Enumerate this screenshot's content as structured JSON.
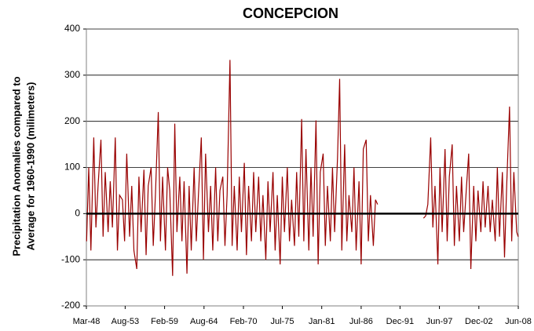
{
  "chart_data": {
    "type": "line",
    "title": "CONCEPCION",
    "y_label": [
      "Precipitation Anomalies compared to",
      "Average for 1960-1990 (milimeters)"
    ],
    "ylim": [
      -200,
      400
    ],
    "yticks": [
      -200,
      -100,
      0,
      100,
      200,
      300,
      400
    ],
    "grid": true,
    "xlim": [
      1948.17,
      2008.42
    ],
    "xticks": [
      {
        "value": 1948.17,
        "label": "Mar-48"
      },
      {
        "value": 1953.58,
        "label": "Aug-53"
      },
      {
        "value": 1959.08,
        "label": "Feb-59"
      },
      {
        "value": 1964.58,
        "label": "Aug-64"
      },
      {
        "value": 1970.08,
        "label": "Feb-70"
      },
      {
        "value": 1975.5,
        "label": "Jul-75"
      },
      {
        "value": 1981.0,
        "label": "Jan-81"
      },
      {
        "value": 1986.5,
        "label": "Jul-86"
      },
      {
        "value": 1991.92,
        "label": "Dec-91"
      },
      {
        "value": 1997.42,
        "label": "Jun-97"
      },
      {
        "value": 2002.92,
        "label": "Dec-02"
      },
      {
        "value": 2008.42,
        "label": "Jun-08"
      }
    ],
    "x": [
      1948.2,
      1948.5,
      1948.8,
      1949.2,
      1949.5,
      1949.8,
      1950.2,
      1950.5,
      1950.8,
      1951.2,
      1951.5,
      1951.8,
      1952.2,
      1952.5,
      1952.8,
      1953.2,
      1953.5,
      1953.8,
      1954.2,
      1954.5,
      1954.8,
      1955.2,
      1955.5,
      1955.8,
      1956.2,
      1956.5,
      1956.8,
      1957.2,
      1957.5,
      1957.8,
      1958.2,
      1958.5,
      1958.8,
      1959.2,
      1959.5,
      1959.8,
      1960.2,
      1960.5,
      1960.8,
      1961.2,
      1961.5,
      1961.8,
      1962.2,
      1962.5,
      1962.8,
      1963.2,
      1963.5,
      1963.8,
      1964.2,
      1964.5,
      1964.8,
      1965.2,
      1965.5,
      1965.8,
      1966.2,
      1966.5,
      1966.8,
      1967.2,
      1967.5,
      1967.8,
      1968.2,
      1968.5,
      1968.8,
      1969.2,
      1969.5,
      1969.8,
      1970.2,
      1970.5,
      1970.8,
      1971.2,
      1971.5,
      1971.8,
      1972.2,
      1972.5,
      1972.8,
      1973.2,
      1973.5,
      1973.8,
      1974.2,
      1974.5,
      1974.8,
      1975.2,
      1975.5,
      1975.8,
      1976.2,
      1976.5,
      1976.8,
      1977.2,
      1977.5,
      1977.8,
      1978.2,
      1978.5,
      1978.8,
      1979.2,
      1979.5,
      1979.8,
      1980.2,
      1980.5,
      1980.8,
      1981.2,
      1981.5,
      1981.8,
      1982.2,
      1982.5,
      1982.8,
      1983.2,
      1983.5,
      1983.8,
      1984.2,
      1984.5,
      1984.8,
      1985.2,
      1985.5,
      1985.8,
      1986.2,
      1986.5,
      1986.8,
      1987.2,
      1987.5,
      1987.8,
      1988.2,
      1988.5,
      1988.8,
      1991.5,
      1995.2,
      1995.5,
      1995.8,
      1996.2,
      1996.5,
      1996.8,
      1997.2,
      1997.5,
      1997.8,
      1998.2,
      1998.5,
      1998.8,
      1999.2,
      1999.5,
      1999.8,
      2000.2,
      2000.5,
      2000.8,
      2001.2,
      2001.5,
      2001.8,
      2002.2,
      2002.5,
      2002.8,
      2003.2,
      2003.5,
      2003.8,
      2004.2,
      2004.5,
      2004.8,
      2005.2,
      2005.5,
      2005.8,
      2006.2,
      2006.5,
      2006.8,
      2007.2,
      2007.5,
      2007.8,
      2008.2,
      2008.4
    ],
    "series": [
      {
        "color": "#990000",
        "values": [
          -60,
          100,
          -80,
          165,
          -30,
          60,
          160,
          -50,
          90,
          -40,
          70,
          -30,
          165,
          -80,
          40,
          30,
          -60,
          130,
          -50,
          60,
          -80,
          -120,
          80,
          -40,
          95,
          -90,
          60,
          100,
          -70,
          40,
          220,
          -60,
          80,
          -80,
          100,
          50,
          -135,
          195,
          -40,
          80,
          -60,
          70,
          -130,
          60,
          -80,
          100,
          -60,
          40,
          165,
          -100,
          130,
          -40,
          60,
          -80,
          100,
          -60,
          50,
          80,
          -70,
          40,
          333,
          -70,
          60,
          -80,
          80,
          -40,
          110,
          -90,
          60,
          -60,
          90,
          -40,
          80,
          -60,
          40,
          -100,
          70,
          -40,
          90,
          -80,
          40,
          -110,
          80,
          -40,
          100,
          -60,
          30,
          -70,
          90,
          -50,
          205,
          -60,
          140,
          -80,
          100,
          -50,
          202,
          -110,
          90,
          130,
          -70,
          60,
          -60,
          100,
          -40,
          120,
          292,
          -80,
          150,
          -60,
          40,
          -40,
          100,
          -80,
          70,
          -110,
          140,
          160,
          -60,
          40,
          -70,
          30,
          20,
          null,
          -10,
          -5,
          20,
          165,
          -30,
          60,
          -110,
          100,
          -40,
          140,
          -60,
          80,
          150,
          -70,
          60,
          -60,
          80,
          -40,
          60,
          130,
          -120,
          60,
          -60,
          50,
          -40,
          70,
          -30,
          60,
          -40,
          30,
          -60,
          100,
          -50,
          90,
          -95,
          60,
          232,
          -60,
          90,
          -40,
          -50
        ]
      }
    ]
  }
}
